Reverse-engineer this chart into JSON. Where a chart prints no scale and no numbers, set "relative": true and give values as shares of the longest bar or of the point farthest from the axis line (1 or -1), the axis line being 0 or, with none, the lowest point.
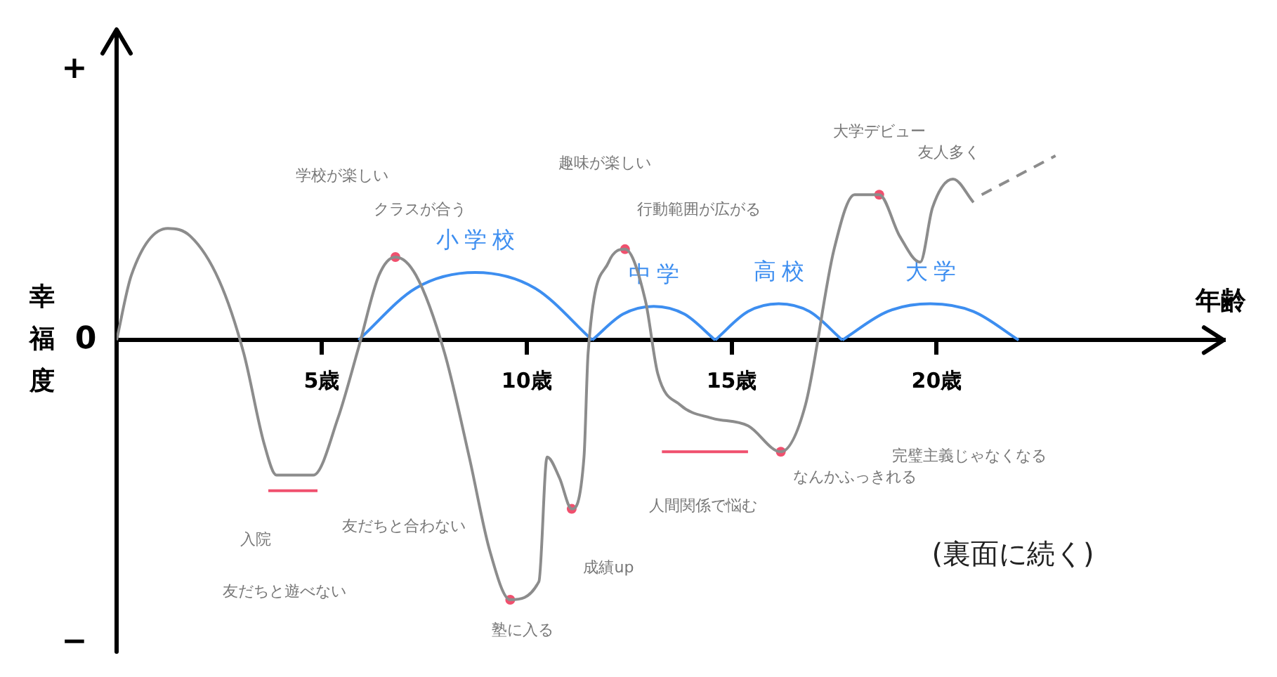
{
  "chart_data": {
    "type": "line",
    "relative": true,
    "xlabel": "年齢",
    "ylabel": "幸福度",
    "xlim": [
      0,
      27
    ],
    "xticks": [
      {
        "value": 5,
        "label": "5歳"
      },
      {
        "value": 10,
        "label": "10歳"
      },
      {
        "value": 15,
        "label": "15歳"
      },
      {
        "value": 20,
        "label": "20歳"
      }
    ],
    "grid": false,
    "legend": false,
    "marker": "none",
    "tick_labels": "x",
    "series": [
      {
        "color": "#8c8c8c",
        "x": [
          0,
          0.36,
          1.25,
          1.8,
          2.5,
          3.1,
          3.6,
          3.9,
          4.8,
          5.4,
          5.9,
          6.4,
          6.8,
          7.3,
          8.0,
          8.6,
          9.1,
          9.6,
          10.3,
          10.5,
          10.8,
          11.1,
          11.4,
          11.5,
          12.0,
          12.4,
          12.9,
          13.2,
          13.75,
          14.5,
          15.4,
          16.2,
          16.8,
          17.5,
          18.0,
          18.6,
          19.1,
          19.6,
          19.9,
          20.4,
          20.9
        ],
        "values": [
          0,
          0.25,
          0.43,
          0.4,
          0.23,
          -0.05,
          -0.4,
          -0.52,
          -0.52,
          -0.3,
          -0.03,
          0.25,
          0.32,
          0.25,
          -0.05,
          -0.45,
          -0.81,
          -1,
          -0.93,
          -0.45,
          -0.53,
          -0.65,
          -0.45,
          -0.05,
          0.3,
          0.35,
          0.15,
          -0.13,
          -0.25,
          -0.3,
          -0.33,
          -0.43,
          -0.25,
          0.35,
          0.56,
          0.56,
          0.4,
          0.3,
          0.51,
          0.62,
          0.53
        ]
      },
      {
        "color": "#8c8c8c",
        "line_style": "dashed",
        "x": [
          21.1,
          22.9
        ],
        "values": [
          0.56,
          0.71
        ]
      },
      {
        "type": "scatter",
        "marker": "circle",
        "color": "#f0506e",
        "x": [
          6.8,
          9.6,
          11.1,
          12.4,
          16.2,
          18.6
        ],
        "values": [
          0.32,
          -1,
          -0.65,
          0.35,
          -0.43,
          0.56
        ]
      },
      {
        "name": "小学校",
        "color": "#3d8ef0",
        "x": [
          5.9,
          7.3,
          8.75,
          10.2,
          11.6
        ],
        "values": [
          0,
          0.2,
          0.26,
          0.2,
          0
        ]
      },
      {
        "name": "中学",
        "color": "#3d8ef0",
        "x": [
          11.6,
          12.35,
          13.1,
          13.85,
          14.6
        ],
        "values": [
          0,
          0.1,
          0.13,
          0.1,
          0
        ]
      },
      {
        "name": "高校",
        "color": "#3d8ef0",
        "x": [
          14.6,
          15.4,
          16.15,
          16.9,
          17.7
        ],
        "values": [
          0,
          0.11,
          0.14,
          0.11,
          0
        ]
      },
      {
        "name": "大学",
        "color": "#3d8ef0",
        "x": [
          17.7,
          18.8,
          19.85,
          20.9,
          22.0
        ],
        "values": [
          0,
          0.11,
          0.14,
          0.11,
          0
        ]
      },
      {
        "color": "#f0506e",
        "x": [
          3.7,
          4.9
        ],
        "values": [
          -0.58,
          -0.58
        ]
      },
      {
        "color": "#f0506e",
        "x": [
          13.3,
          15.4
        ],
        "values": [
          -0.43,
          -0.43
        ]
      }
    ],
    "annotations": [
      "+",
      "0",
      "−",
      "(裏面に続く)",
      "学校が楽しい",
      "クラスが合う",
      "趣味が楽しい",
      "行動範囲が広がる",
      "大学デビュー",
      "友人多く",
      "入院",
      "友だちと遊べない",
      "友だちと合わない",
      "塾に入る",
      "成績up",
      "人間関係で悩む",
      "なんかふっきれる",
      "完璧主義じゃなくなる"
    ]
  }
}
